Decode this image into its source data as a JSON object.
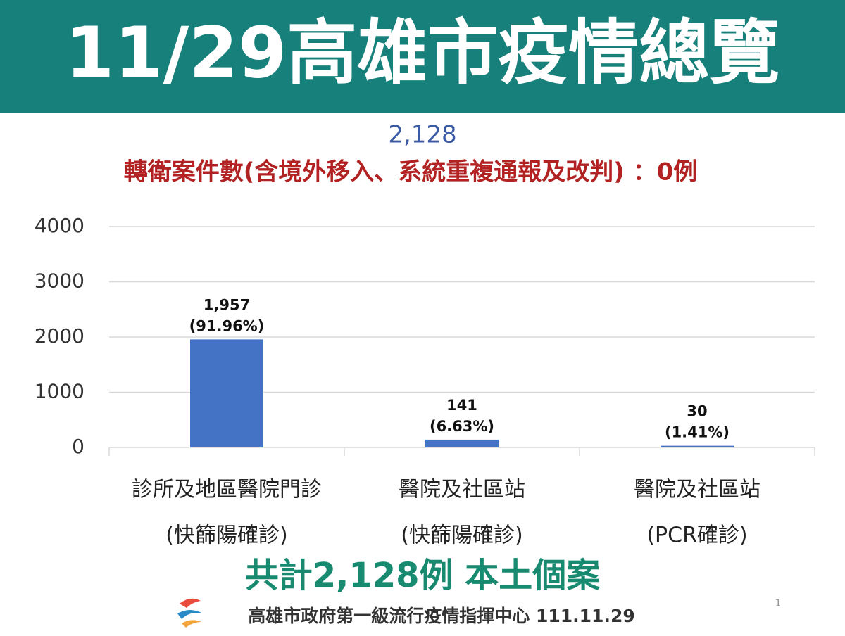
{
  "header": {
    "title": "11/29高雄市疫情總覽"
  },
  "total_note": "2,128",
  "transfer_note": "轉衛案件數(含境外移入、系統重複通報及改判) ：0例",
  "chart_data": {
    "type": "bar",
    "categories": [
      [
        "診所及地區醫院門診",
        "(快篩陽確診)"
      ],
      [
        "醫院及社區站",
        "(快篩陽確診)"
      ],
      [
        "醫院及社區站",
        "(PCR確診)"
      ]
    ],
    "values": [
      1957,
      141,
      30
    ],
    "value_labels": [
      [
        "1,957",
        "(91.96%)"
      ],
      [
        "141",
        "(6.63%)"
      ],
      [
        "30",
        "(1.41%)"
      ]
    ],
    "color": "#4472c4",
    "ylim": [
      0,
      4000
    ],
    "yticks": [
      0,
      1000,
      2000,
      3000,
      4000
    ],
    "grid": true
  },
  "summary": "共計2,128例 本土個案",
  "footer": {
    "source": "高雄市政府第一級流行疫情指揮中心 111.11.29",
    "page": "1"
  }
}
